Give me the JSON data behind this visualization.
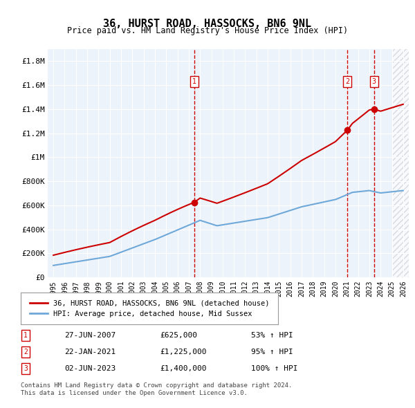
{
  "title": "36, HURST ROAD, HASSOCKS, BN6 9NL",
  "subtitle": "Price paid vs. HM Land Registry's House Price Index (HPI)",
  "legend_label_red": "36, HURST ROAD, HASSOCKS, BN6 9NL (detached house)",
  "legend_label_blue": "HPI: Average price, detached house, Mid Sussex",
  "footer1": "Contains HM Land Registry data © Crown copyright and database right 2024.",
  "footer2": "This data is licensed under the Open Government Licence v3.0.",
  "transactions": [
    {
      "label": "1",
      "date": "27-JUN-2007",
      "price": 625000,
      "pct": "53%",
      "dir": "↑"
    },
    {
      "label": "2",
      "date": "22-JAN-2021",
      "price": 1225000,
      "pct": "95%",
      "dir": "↑"
    },
    {
      "label": "3",
      "date": "02-JUN-2023",
      "price": 1400000,
      "pct": "100%",
      "dir": "↑"
    }
  ],
  "transaction_years": [
    2007.49,
    2021.06,
    2023.42
  ],
  "transaction_prices": [
    625000,
    1225000,
    1400000
  ],
  "hpi_color": "#6ea8d8",
  "price_color": "#cc0000",
  "plot_bg": "#edf3fb",
  "grid_color": "#ffffff",
  "ylim": [
    0,
    1900000
  ],
  "xlim": [
    1994.5,
    2026.5
  ],
  "yticks": [
    0,
    200000,
    400000,
    600000,
    800000,
    1000000,
    1200000,
    1400000,
    1600000,
    1800000
  ],
  "ytick_labels": [
    "£0",
    "£200K",
    "£400K",
    "£600K",
    "£800K",
    "£1M",
    "£1.2M",
    "£1.4M",
    "£1.6M",
    "£1.8M"
  ],
  "xticks": [
    1995,
    1996,
    1997,
    1998,
    1999,
    2000,
    2001,
    2002,
    2003,
    2004,
    2005,
    2006,
    2007,
    2008,
    2009,
    2010,
    2011,
    2012,
    2013,
    2014,
    2015,
    2016,
    2017,
    2018,
    2019,
    2020,
    2021,
    2022,
    2023,
    2024,
    2025,
    2026
  ]
}
